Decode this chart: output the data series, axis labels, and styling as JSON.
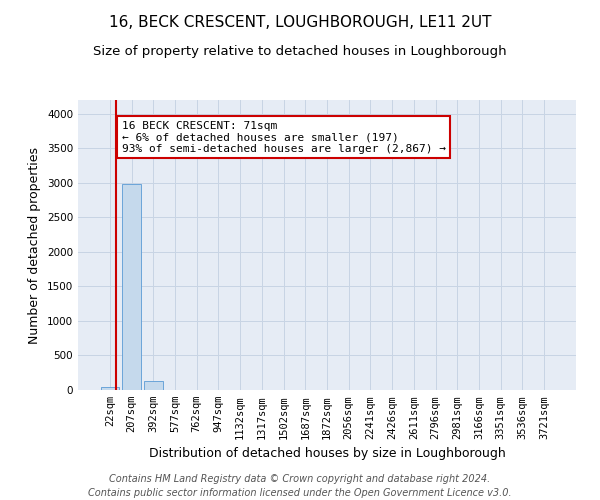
{
  "title": "16, BECK CRESCENT, LOUGHBOROUGH, LE11 2UT",
  "subtitle": "Size of property relative to detached houses in Loughborough",
  "xlabel": "Distribution of detached houses by size in Loughborough",
  "ylabel": "Number of detached properties",
  "categories": [
    "22sqm",
    "207sqm",
    "392sqm",
    "577sqm",
    "762sqm",
    "947sqm",
    "1132sqm",
    "1317sqm",
    "1502sqm",
    "1687sqm",
    "1872sqm",
    "2056sqm",
    "2241sqm",
    "2426sqm",
    "2611sqm",
    "2796sqm",
    "2981sqm",
    "3166sqm",
    "3351sqm",
    "3536sqm",
    "3721sqm"
  ],
  "values": [
    50,
    2980,
    130,
    5,
    2,
    1,
    1,
    0,
    0,
    0,
    0,
    0,
    0,
    0,
    0,
    0,
    0,
    0,
    0,
    0,
    0
  ],
  "bar_color": "#c5d9ec",
  "bar_edge_color": "#5b9bd5",
  "property_line_color": "#cc0000",
  "property_line_x": 0.3,
  "annotation_line1": "16 BECK CRESCENT: 71sqm",
  "annotation_line2": "← 6% of detached houses are smaller (197)",
  "annotation_line3": "93% of semi-detached houses are larger (2,867) →",
  "annotation_box_color": "#ffffff",
  "annotation_box_edge": "#cc0000",
  "ylim": [
    0,
    4200
  ],
  "yticks": [
    0,
    500,
    1000,
    1500,
    2000,
    2500,
    3000,
    3500,
    4000
  ],
  "grid_color": "#c8d4e4",
  "background_color": "#e6ecf5",
  "footer": "Contains HM Land Registry data © Crown copyright and database right 2024.\nContains public sector information licensed under the Open Government Licence v3.0.",
  "title_fontsize": 11,
  "subtitle_fontsize": 9.5,
  "xlabel_fontsize": 9,
  "ylabel_fontsize": 9,
  "tick_fontsize": 7.5,
  "annotation_fontsize": 8,
  "footer_fontsize": 7
}
